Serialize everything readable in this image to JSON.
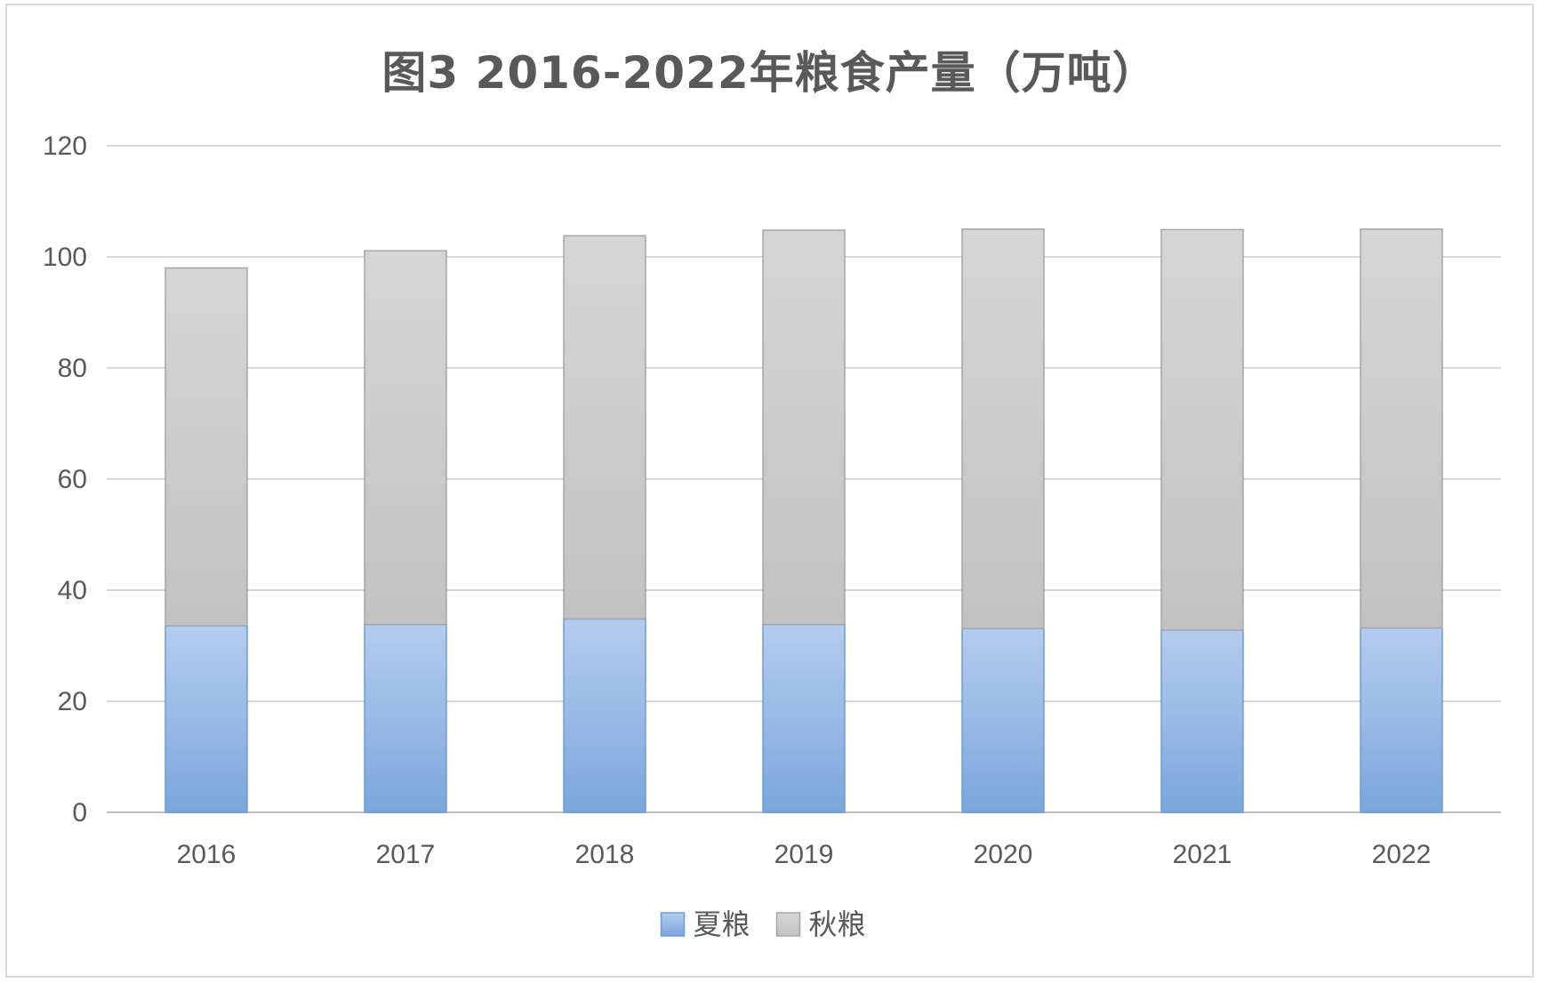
{
  "chart_data": {
    "type": "bar",
    "stacked": true,
    "title": "图3 2016-2022年粮食产量（万吨）",
    "xlabel": "",
    "ylabel": "",
    "categories": [
      "2016",
      "2017",
      "2018",
      "2019",
      "2020",
      "2021",
      "2022"
    ],
    "series": [
      {
        "name": "夏粮",
        "color": "#8fb4e3",
        "values": [
          33.6,
          33.8,
          34.8,
          33.8,
          33.1,
          32.8,
          33.2
        ]
      },
      {
        "name": "秋粮",
        "color": "#c9c9c9",
        "values": [
          64.4,
          67.3,
          69.0,
          71.0,
          71.9,
          72.1,
          71.8
        ]
      }
    ],
    "ylim": [
      0,
      120
    ],
    "yticks": [
      "0",
      "20",
      "40",
      "60",
      "80",
      "100",
      "120"
    ],
    "grid": true,
    "legend": "bottom-center"
  }
}
